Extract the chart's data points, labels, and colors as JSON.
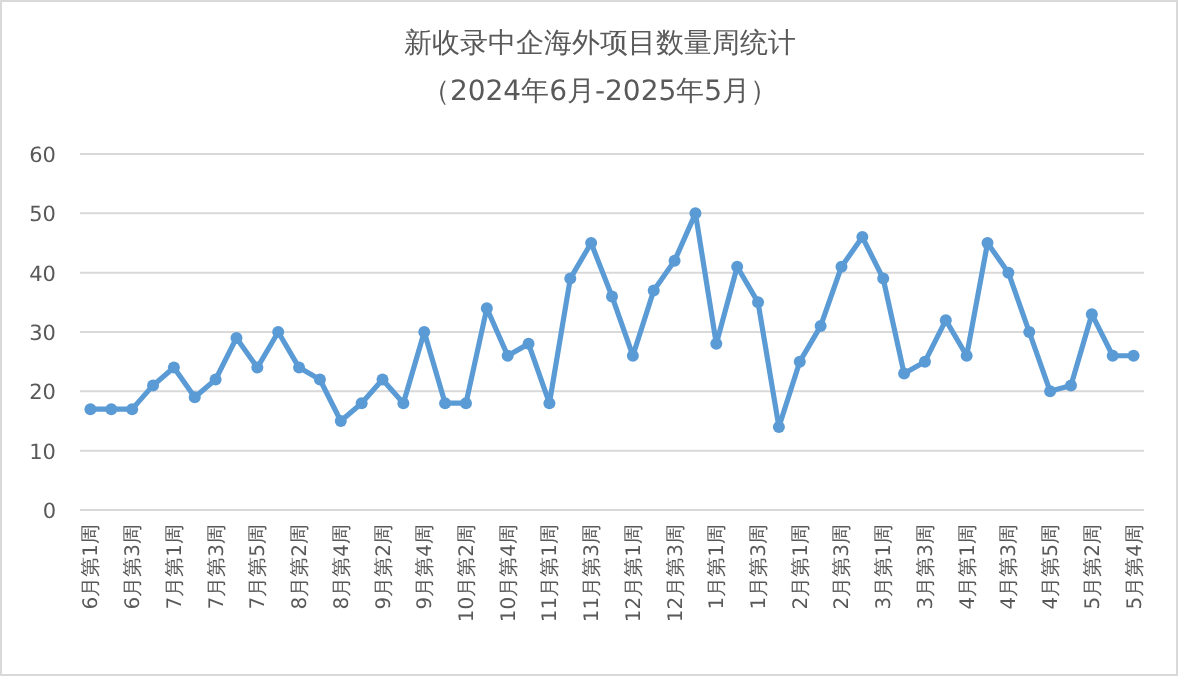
{
  "chart_data": {
    "type": "line",
    "title": "新收录中企海外项目数量周统计",
    "subtitle": "（2024年6月-2025年5月）",
    "categories": [
      "6月第1周",
      null,
      "6月第3周",
      null,
      "7月第1周",
      null,
      "7月第3周",
      null,
      "7月第5周",
      null,
      "8月第2周",
      null,
      "8月第4周",
      null,
      "9月第2周",
      null,
      "9月第4周",
      null,
      "10月第2周",
      null,
      "10月第4周",
      null,
      "11月第1周",
      null,
      "11月第3周",
      null,
      "12月第1周",
      null,
      "12月第3周",
      null,
      "1月第1周",
      null,
      "1月第3周",
      null,
      "2月第1周",
      null,
      "2月第3周",
      null,
      "3月第1周",
      null,
      "3月第3周",
      null,
      "4月第1周",
      null,
      "4月第3周",
      null,
      "4月第5周",
      null,
      "5月第2周",
      null,
      "5月第4周"
    ],
    "series": [
      {
        "color": "#5b9bd5",
        "values": [
          17,
          17,
          17,
          21,
          24,
          19,
          22,
          29,
          24,
          30,
          24,
          22,
          15,
          18,
          22,
          18,
          30,
          18,
          18,
          34,
          26,
          28,
          18,
          39,
          45,
          36,
          26,
          37,
          42,
          50,
          28,
          41,
          35,
          14,
          25,
          31,
          41,
          46,
          39,
          23,
          25,
          32,
          26,
          45,
          40,
          30,
          20,
          21,
          33,
          26,
          26
        ]
      }
    ],
    "ylim": [
      0,
      60
    ],
    "yticks": [
      0,
      10,
      20,
      30,
      40,
      50,
      60
    ],
    "grid": "y",
    "marker": "circle",
    "line_style": "solid"
  }
}
